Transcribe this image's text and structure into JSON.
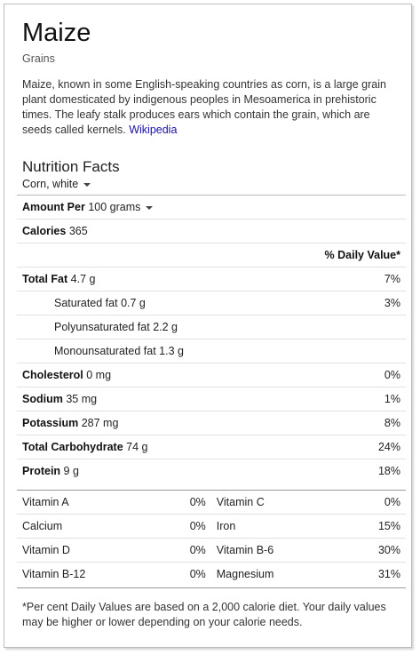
{
  "food": {
    "name": "Maize",
    "category": "Grains",
    "description": "Maize, known in some English-speaking countries as corn, is a large grain plant domesticated by indigenous peoples in Mesoamerica in prehistoric times. The leafy stalk produces ears which contain the grain, which are seeds called kernels.",
    "source_link": "Wikipedia"
  },
  "nutrition": {
    "title": "Nutrition Facts",
    "variety": "Corn, white",
    "amount_label": "Amount Per",
    "amount_value": "100 grams",
    "calories_label": "Calories",
    "calories_value": "365",
    "dv_header": "% Daily Value*",
    "rows": [
      {
        "label": "Total Fat",
        "amount": "4.7 g",
        "dv": "7%"
      },
      {
        "label": "Saturated fat",
        "amount": "0.7 g",
        "dv": "3%"
      },
      {
        "label": "Polyunsaturated fat",
        "amount": "2.2 g",
        "dv": ""
      },
      {
        "label": "Monounsaturated fat",
        "amount": "1.3 g",
        "dv": ""
      },
      {
        "label": "Cholesterol",
        "amount": "0 mg",
        "dv": "0%"
      },
      {
        "label": "Sodium",
        "amount": "35 mg",
        "dv": "1%"
      },
      {
        "label": "Potassium",
        "amount": "287 mg",
        "dv": "8%"
      },
      {
        "label": "Total Carbohydrate",
        "amount": "74 g",
        "dv": "24%"
      },
      {
        "label": "Protein",
        "amount": "9 g",
        "dv": "18%"
      }
    ],
    "vitamins": [
      {
        "left": "Vitamin A",
        "left_dv": "0%",
        "right": "Vitamin C",
        "right_dv": "0%"
      },
      {
        "left": "Calcium",
        "left_dv": "0%",
        "right": "Iron",
        "right_dv": "15%"
      },
      {
        "left": "Vitamin D",
        "left_dv": "0%",
        "right": "Vitamin B-6",
        "right_dv": "30%"
      },
      {
        "left": "Vitamin B-12",
        "left_dv": "0%",
        "right": "Magnesium",
        "right_dv": "31%"
      }
    ],
    "footnote": "*Per cent Daily Values are based on a 2,000 calorie diet. Your daily values may be higher or lower depending on your calorie needs."
  }
}
